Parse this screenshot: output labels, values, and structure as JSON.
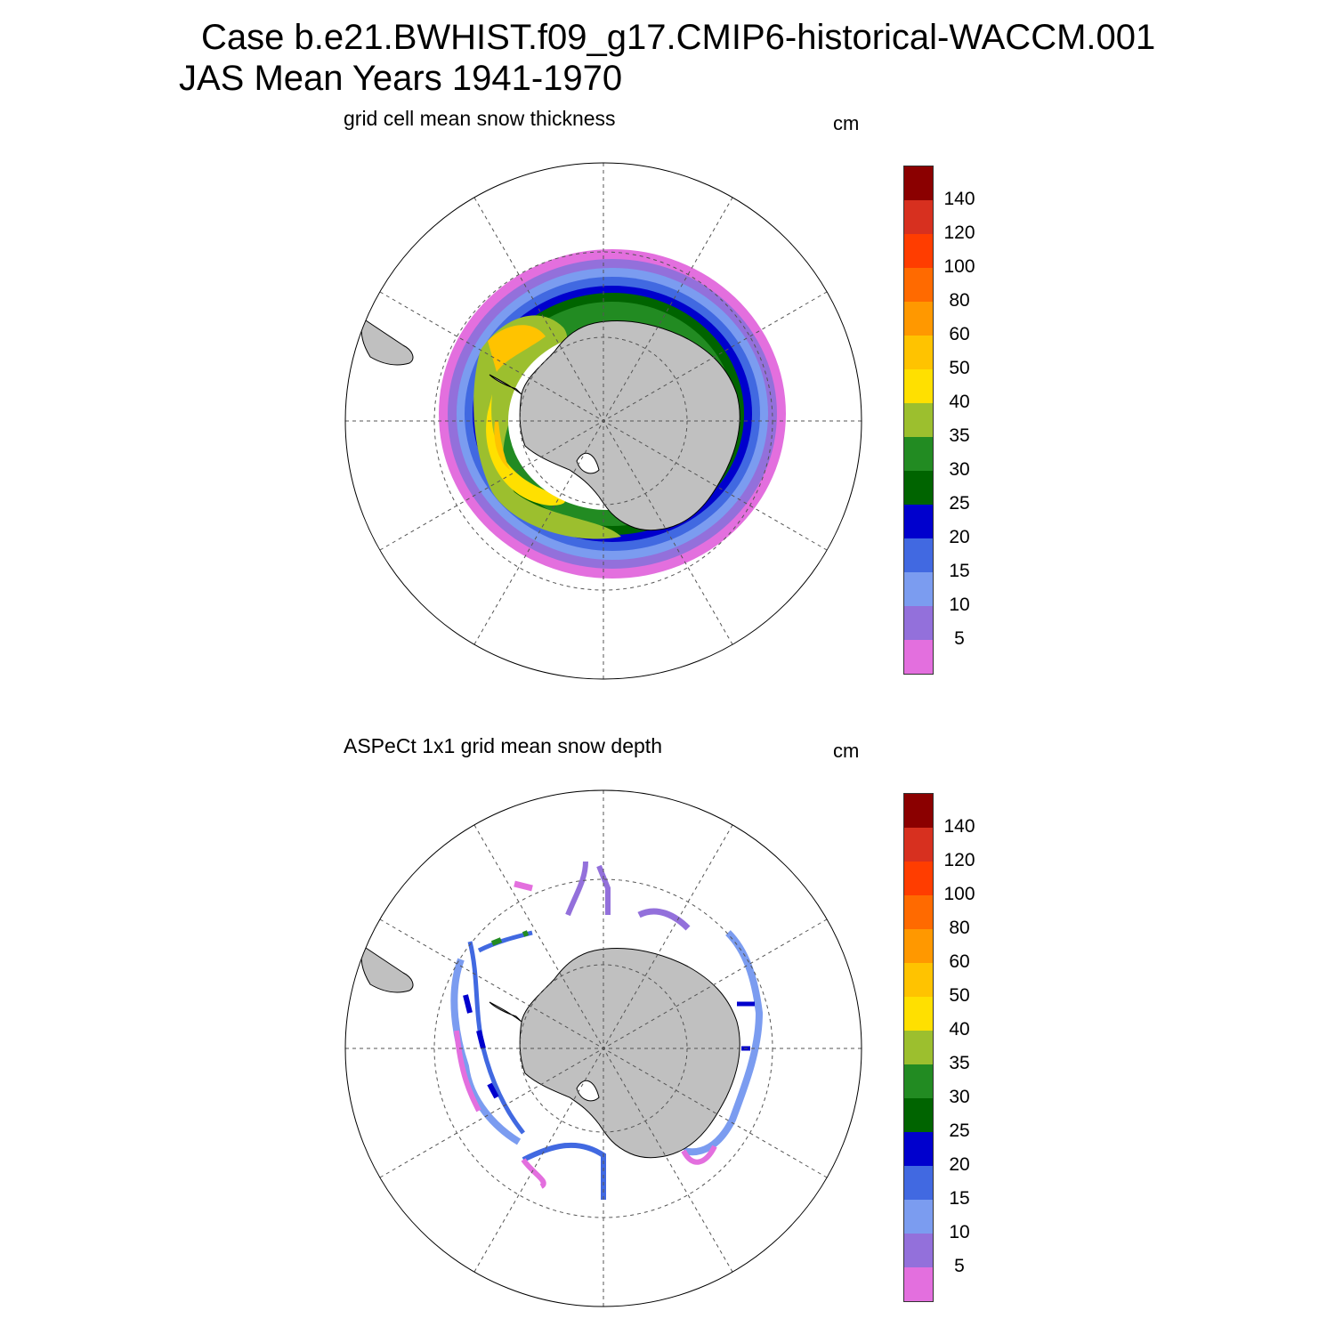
{
  "title": {
    "line1": "Case b.e21.BWHIST.f09_g17.CMIP6-historical-WACCM.001",
    "line2": "JAS Mean   Years 1941-1970"
  },
  "panels": [
    {
      "title": "grid cell mean snow thickness",
      "units": "cm"
    },
    {
      "title": "ASPeCt 1x1 grid mean snow depth",
      "units": "cm"
    }
  ],
  "colorbar": {
    "labels": [
      "140",
      "120",
      "100",
      "80",
      "60",
      "50",
      "40",
      "35",
      "30",
      "25",
      "20",
      "15",
      "10",
      "5"
    ],
    "colors": [
      "#8b0000",
      "#d7301f",
      "#ff3d00",
      "#ff6a00",
      "#ff9800",
      "#ffc300",
      "#ffe000",
      "#9cbf2e",
      "#228b22",
      "#006400",
      "#0000cd",
      "#4169e1",
      "#7b9cf0",
      "#9370db",
      "#e36fde"
    ]
  },
  "land_color": "#c0c0c0"
}
